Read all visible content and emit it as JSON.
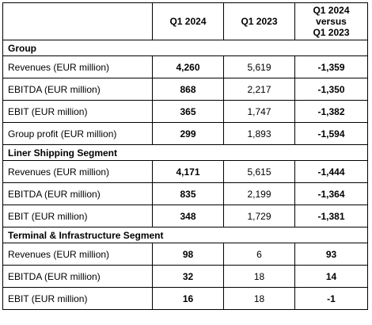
{
  "columns": [
    "",
    "Q1 2024",
    "Q1 2023",
    "Q1 2024\nversus\nQ1 2023"
  ],
  "sections": [
    {
      "title": "Group",
      "rows": [
        {
          "label": "Revenues (EUR million)",
          "q1_2024": "4,260",
          "q1_2023": "5,619",
          "change": "-1,359"
        },
        {
          "label": "EBITDA (EUR million)",
          "q1_2024": "868",
          "q1_2023": "2,217",
          "change": "-1,350"
        },
        {
          "label": "EBIT (EUR million)",
          "q1_2024": "365",
          "q1_2023": "1,747",
          "change": "-1,382"
        },
        {
          "label": "Group profit (EUR million)",
          "q1_2024": "299",
          "q1_2023": "1,893",
          "change": "-1,594"
        }
      ]
    },
    {
      "title": "Liner Shipping Segment",
      "rows": [
        {
          "label": "Revenues (EUR million)",
          "q1_2024": "4,171",
          "q1_2023": "5,615",
          "change": "-1,444"
        },
        {
          "label": "EBITDA (EUR million)",
          "q1_2024": "835",
          "q1_2023": "2,199",
          "change": "-1,364"
        },
        {
          "label": "EBIT (EUR million)",
          "q1_2024": "348",
          "q1_2023": "1,729",
          "change": "-1,381"
        }
      ]
    },
    {
      "title": "Terminal & Infrastructure Segment",
      "rows": [
        {
          "label": "Revenues (EUR million)",
          "q1_2024": "98",
          "q1_2023": "6",
          "change": "93"
        },
        {
          "label": "EBITDA (EUR million)",
          "q1_2024": "32",
          "q1_2023": "18",
          "change": "14"
        },
        {
          "label": "EBIT (EUR million)",
          "q1_2024": "16",
          "q1_2023": "18",
          "change": "-1"
        }
      ]
    }
  ]
}
